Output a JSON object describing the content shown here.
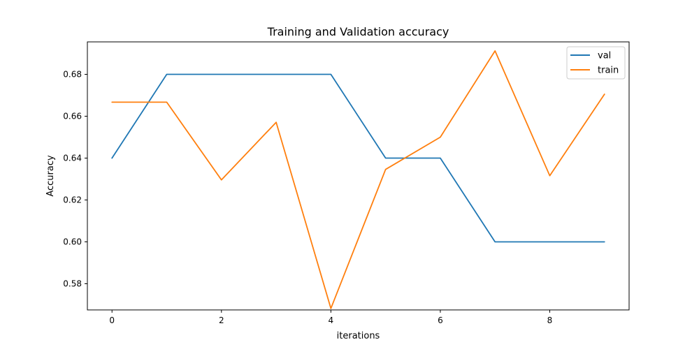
{
  "chart_data": {
    "type": "line",
    "title": "Training and Validation accuracy",
    "xlabel": "iterations",
    "ylabel": "Accuracy",
    "x": [
      0,
      1,
      2,
      3,
      4,
      5,
      6,
      7,
      8,
      9
    ],
    "xlim": [
      -0.45,
      9.45
    ],
    "ylim": [
      0.5675,
      0.6955
    ],
    "xticks": [
      0,
      2,
      4,
      6,
      8
    ],
    "xtick_labels": [
      "0",
      "2",
      "4",
      "6",
      "8"
    ],
    "yticks": [
      0.58,
      0.6,
      0.62,
      0.64,
      0.66,
      0.68
    ],
    "ytick_labels": [
      "0.58",
      "0.60",
      "0.62",
      "0.64",
      "0.66",
      "0.68"
    ],
    "grid": false,
    "legend_position": "top-right",
    "series": [
      {
        "name": "val",
        "color": "#1f77b4",
        "values": [
          0.64,
          0.68,
          0.68,
          0.68,
          0.68,
          0.64,
          0.64,
          0.6,
          0.6,
          0.6
        ]
      },
      {
        "name": "train",
        "color": "#ff7f0e",
        "values": [
          0.6667,
          0.6667,
          0.6296,
          0.6571,
          0.5682,
          0.6346,
          0.65,
          0.6912,
          0.6316,
          0.6705
        ]
      }
    ]
  }
}
